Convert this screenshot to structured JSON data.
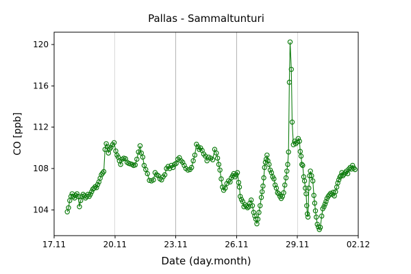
{
  "chart_data": {
    "type": "line",
    "title": "Pallas - Sammaltunturi",
    "xlabel": "Date (day.month)",
    "ylabel": "CO [ppb]",
    "x_units": "day of month (Nov 17 = 17 ... Dec 2 = 32)",
    "xlim": [
      17,
      32
    ],
    "ylim": [
      101.5,
      121.2
    ],
    "x_ticks": [
      {
        "value": 17,
        "label": "17.11"
      },
      {
        "value": 20,
        "label": "20.11"
      },
      {
        "value": 23,
        "label": "23.11"
      },
      {
        "value": 26,
        "label": "26.11"
      },
      {
        "value": 29,
        "label": "29.11"
      },
      {
        "value": 32,
        "label": "02.12"
      }
    ],
    "y_ticks": [
      {
        "value": 104,
        "label": "104"
      },
      {
        "value": 108,
        "label": "108"
      },
      {
        "value": 112,
        "label": "112"
      },
      {
        "value": 116,
        "label": "116"
      },
      {
        "value": 120,
        "label": "120"
      }
    ],
    "grid_x": [
      20,
      23,
      26,
      29
    ],
    "grid_on": true,
    "legend": null,
    "marker": "open-circle",
    "colors": {
      "line": "#0e7c0e",
      "grid": "#b3b3b3",
      "frame": "#000000",
      "text": "#000000",
      "background": "#ffffff"
    },
    "series": [
      {
        "name": "CO",
        "color": "#0e7c0e",
        "points": [
          [
            17.65,
            103.8
          ],
          [
            17.71,
            104.2
          ],
          [
            17.77,
            104.9
          ],
          [
            17.83,
            105.3
          ],
          [
            17.89,
            105.55
          ],
          [
            17.95,
            105.3
          ],
          [
            18.01,
            105.15
          ],
          [
            18.07,
            105.4
          ],
          [
            18.13,
            105.55
          ],
          [
            18.19,
            105.3
          ],
          [
            18.25,
            104.3
          ],
          [
            18.31,
            104.9
          ],
          [
            18.37,
            105.3
          ],
          [
            18.43,
            105.5
          ],
          [
            18.49,
            105.35
          ],
          [
            18.55,
            105.15
          ],
          [
            18.61,
            105.3
          ],
          [
            18.67,
            105.5
          ],
          [
            18.73,
            105.3
          ],
          [
            18.79,
            105.5
          ],
          [
            18.85,
            105.75
          ],
          [
            18.91,
            106.0
          ],
          [
            18.97,
            106.1
          ],
          [
            19.03,
            106.25
          ],
          [
            19.09,
            106.15
          ],
          [
            19.15,
            106.45
          ],
          [
            19.21,
            106.7
          ],
          [
            19.27,
            107.05
          ],
          [
            19.33,
            107.4
          ],
          [
            19.39,
            107.55
          ],
          [
            19.45,
            107.7
          ],
          [
            19.51,
            109.85
          ],
          [
            19.57,
            110.4
          ],
          [
            19.63,
            110.1
          ],
          [
            19.68,
            109.5
          ],
          [
            19.74,
            109.9
          ],
          [
            19.8,
            110.05
          ],
          [
            19.88,
            110.3
          ],
          [
            19.96,
            110.5
          ],
          [
            20.04,
            109.7
          ],
          [
            20.1,
            109.3
          ],
          [
            20.16,
            109.1
          ],
          [
            20.22,
            108.75
          ],
          [
            20.28,
            108.4
          ],
          [
            20.36,
            108.9
          ],
          [
            20.44,
            109.0
          ],
          [
            20.52,
            108.95
          ],
          [
            20.6,
            108.6
          ],
          [
            20.68,
            108.5
          ],
          [
            20.76,
            108.45
          ],
          [
            20.84,
            108.4
          ],
          [
            20.92,
            108.3
          ],
          [
            21.0,
            108.35
          ],
          [
            21.08,
            108.9
          ],
          [
            21.16,
            109.6
          ],
          [
            21.24,
            110.2
          ],
          [
            21.3,
            109.5
          ],
          [
            21.37,
            109.1
          ],
          [
            21.44,
            108.3
          ],
          [
            21.52,
            107.9
          ],
          [
            21.6,
            107.5
          ],
          [
            21.7,
            106.85
          ],
          [
            21.8,
            106.8
          ],
          [
            21.9,
            106.9
          ],
          [
            21.98,
            107.6
          ],
          [
            22.06,
            107.4
          ],
          [
            22.14,
            107.3
          ],
          [
            22.22,
            107.0
          ],
          [
            22.3,
            106.9
          ],
          [
            22.38,
            107.2
          ],
          [
            22.46,
            107.4
          ],
          [
            22.54,
            108.0
          ],
          [
            22.62,
            108.2
          ],
          [
            22.7,
            108.0
          ],
          [
            22.78,
            108.3
          ],
          [
            22.86,
            108.1
          ],
          [
            22.94,
            108.4
          ],
          [
            23.02,
            108.5
          ],
          [
            23.1,
            108.9
          ],
          [
            23.18,
            109.05
          ],
          [
            23.26,
            108.75
          ],
          [
            23.34,
            108.6
          ],
          [
            23.42,
            108.3
          ],
          [
            23.5,
            108.0
          ],
          [
            23.6,
            107.85
          ],
          [
            23.7,
            107.9
          ],
          [
            23.78,
            108.1
          ],
          [
            23.86,
            108.75
          ],
          [
            23.94,
            109.3
          ],
          [
            24.02,
            110.35
          ],
          [
            24.1,
            110.1
          ],
          [
            24.16,
            109.85
          ],
          [
            24.22,
            110.0
          ],
          [
            24.3,
            109.75
          ],
          [
            24.38,
            109.4
          ],
          [
            24.46,
            109.2
          ],
          [
            24.54,
            108.75
          ],
          [
            24.62,
            109.1
          ],
          [
            24.72,
            109.0
          ],
          [
            24.82,
            108.85
          ],
          [
            24.92,
            109.85
          ],
          [
            25.0,
            109.5
          ],
          [
            25.06,
            109.0
          ],
          [
            25.12,
            108.4
          ],
          [
            25.18,
            107.85
          ],
          [
            25.24,
            107.0
          ],
          [
            25.3,
            106.2
          ],
          [
            25.36,
            105.9
          ],
          [
            25.44,
            106.1
          ],
          [
            25.52,
            106.55
          ],
          [
            25.6,
            106.8
          ],
          [
            25.68,
            106.7
          ],
          [
            25.74,
            107.1
          ],
          [
            25.8,
            107.3
          ],
          [
            25.86,
            107.5
          ],
          [
            25.92,
            107.2
          ],
          [
            25.98,
            107.4
          ],
          [
            26.04,
            107.6
          ],
          [
            26.1,
            106.65
          ],
          [
            26.14,
            106.2
          ],
          [
            26.18,
            105.3
          ],
          [
            26.24,
            105.0
          ],
          [
            26.3,
            104.8
          ],
          [
            26.36,
            104.3
          ],
          [
            26.42,
            104.5
          ],
          [
            26.48,
            104.35
          ],
          [
            26.54,
            104.2
          ],
          [
            26.6,
            104.3
          ],
          [
            26.66,
            104.65
          ],
          [
            26.72,
            104.95
          ],
          [
            26.78,
            104.4
          ],
          [
            26.84,
            103.75
          ],
          [
            26.9,
            103.4
          ],
          [
            26.95,
            103.1
          ],
          [
            27.0,
            102.65
          ],
          [
            27.05,
            103.1
          ],
          [
            27.1,
            103.75
          ],
          [
            27.16,
            104.4
          ],
          [
            27.22,
            105.2
          ],
          [
            27.26,
            105.75
          ],
          [
            27.3,
            106.3
          ],
          [
            27.34,
            107.1
          ],
          [
            27.38,
            108.1
          ],
          [
            27.42,
            108.6
          ],
          [
            27.46,
            108.9
          ],
          [
            27.5,
            109.3
          ],
          [
            27.54,
            108.75
          ],
          [
            27.6,
            108.4
          ],
          [
            27.66,
            107.85
          ],
          [
            27.72,
            107.6
          ],
          [
            27.78,
            107.2
          ],
          [
            27.84,
            107.0
          ],
          [
            27.9,
            106.4
          ],
          [
            27.96,
            106.1
          ],
          [
            28.02,
            105.65
          ],
          [
            28.08,
            105.55
          ],
          [
            28.14,
            105.3
          ],
          [
            28.2,
            105.1
          ],
          [
            28.26,
            105.3
          ],
          [
            28.32,
            105.65
          ],
          [
            28.38,
            106.4
          ],
          [
            28.44,
            107.1
          ],
          [
            28.48,
            107.75
          ],
          [
            28.52,
            108.4
          ],
          [
            28.56,
            109.6
          ],
          [
            28.6,
            116.35
          ],
          [
            28.64,
            120.25
          ],
          [
            28.7,
            117.6
          ],
          [
            28.74,
            112.5
          ],
          [
            28.8,
            110.3
          ],
          [
            28.86,
            110.65
          ],
          [
            28.92,
            110.4
          ],
          [
            28.98,
            110.55
          ],
          [
            29.04,
            110.9
          ],
          [
            29.1,
            110.65
          ],
          [
            29.14,
            109.65
          ],
          [
            29.18,
            109.2
          ],
          [
            29.22,
            108.4
          ],
          [
            29.26,
            108.3
          ],
          [
            29.31,
            107.2
          ],
          [
            29.35,
            106.8
          ],
          [
            29.39,
            106.1
          ],
          [
            29.43,
            105.55
          ],
          [
            29.46,
            104.4
          ],
          [
            29.49,
            103.6
          ],
          [
            29.52,
            103.3
          ],
          [
            29.56,
            106.1
          ],
          [
            29.6,
            107.3
          ],
          [
            29.64,
            107.75
          ],
          [
            29.7,
            107.3
          ],
          [
            29.76,
            106.8
          ],
          [
            29.81,
            105.4
          ],
          [
            29.85,
            104.65
          ],
          [
            29.89,
            103.9
          ],
          [
            29.93,
            103.3
          ],
          [
            29.98,
            102.6
          ],
          [
            30.03,
            102.35
          ],
          [
            30.08,
            102.1
          ],
          [
            30.13,
            102.3
          ],
          [
            30.2,
            103.4
          ],
          [
            30.25,
            104.1
          ],
          [
            30.31,
            104.3
          ],
          [
            30.36,
            104.55
          ],
          [
            30.41,
            104.8
          ],
          [
            30.46,
            105.1
          ],
          [
            30.52,
            105.3
          ],
          [
            30.58,
            105.45
          ],
          [
            30.64,
            105.6
          ],
          [
            30.7,
            105.5
          ],
          [
            30.76,
            105.7
          ],
          [
            30.82,
            105.35
          ],
          [
            30.88,
            105.75
          ],
          [
            30.94,
            106.2
          ],
          [
            30.99,
            106.6
          ],
          [
            31.04,
            106.9
          ],
          [
            31.09,
            107.15
          ],
          [
            31.14,
            107.3
          ],
          [
            31.19,
            107.6
          ],
          [
            31.24,
            107.3
          ],
          [
            31.3,
            107.45
          ],
          [
            31.36,
            107.6
          ],
          [
            31.42,
            107.75
          ],
          [
            31.48,
            107.5
          ],
          [
            31.54,
            107.95
          ],
          [
            31.6,
            108.1
          ],
          [
            31.66,
            107.95
          ],
          [
            31.72,
            108.3
          ],
          [
            31.78,
            108.05
          ],
          [
            31.84,
            107.9
          ]
        ]
      }
    ]
  }
}
